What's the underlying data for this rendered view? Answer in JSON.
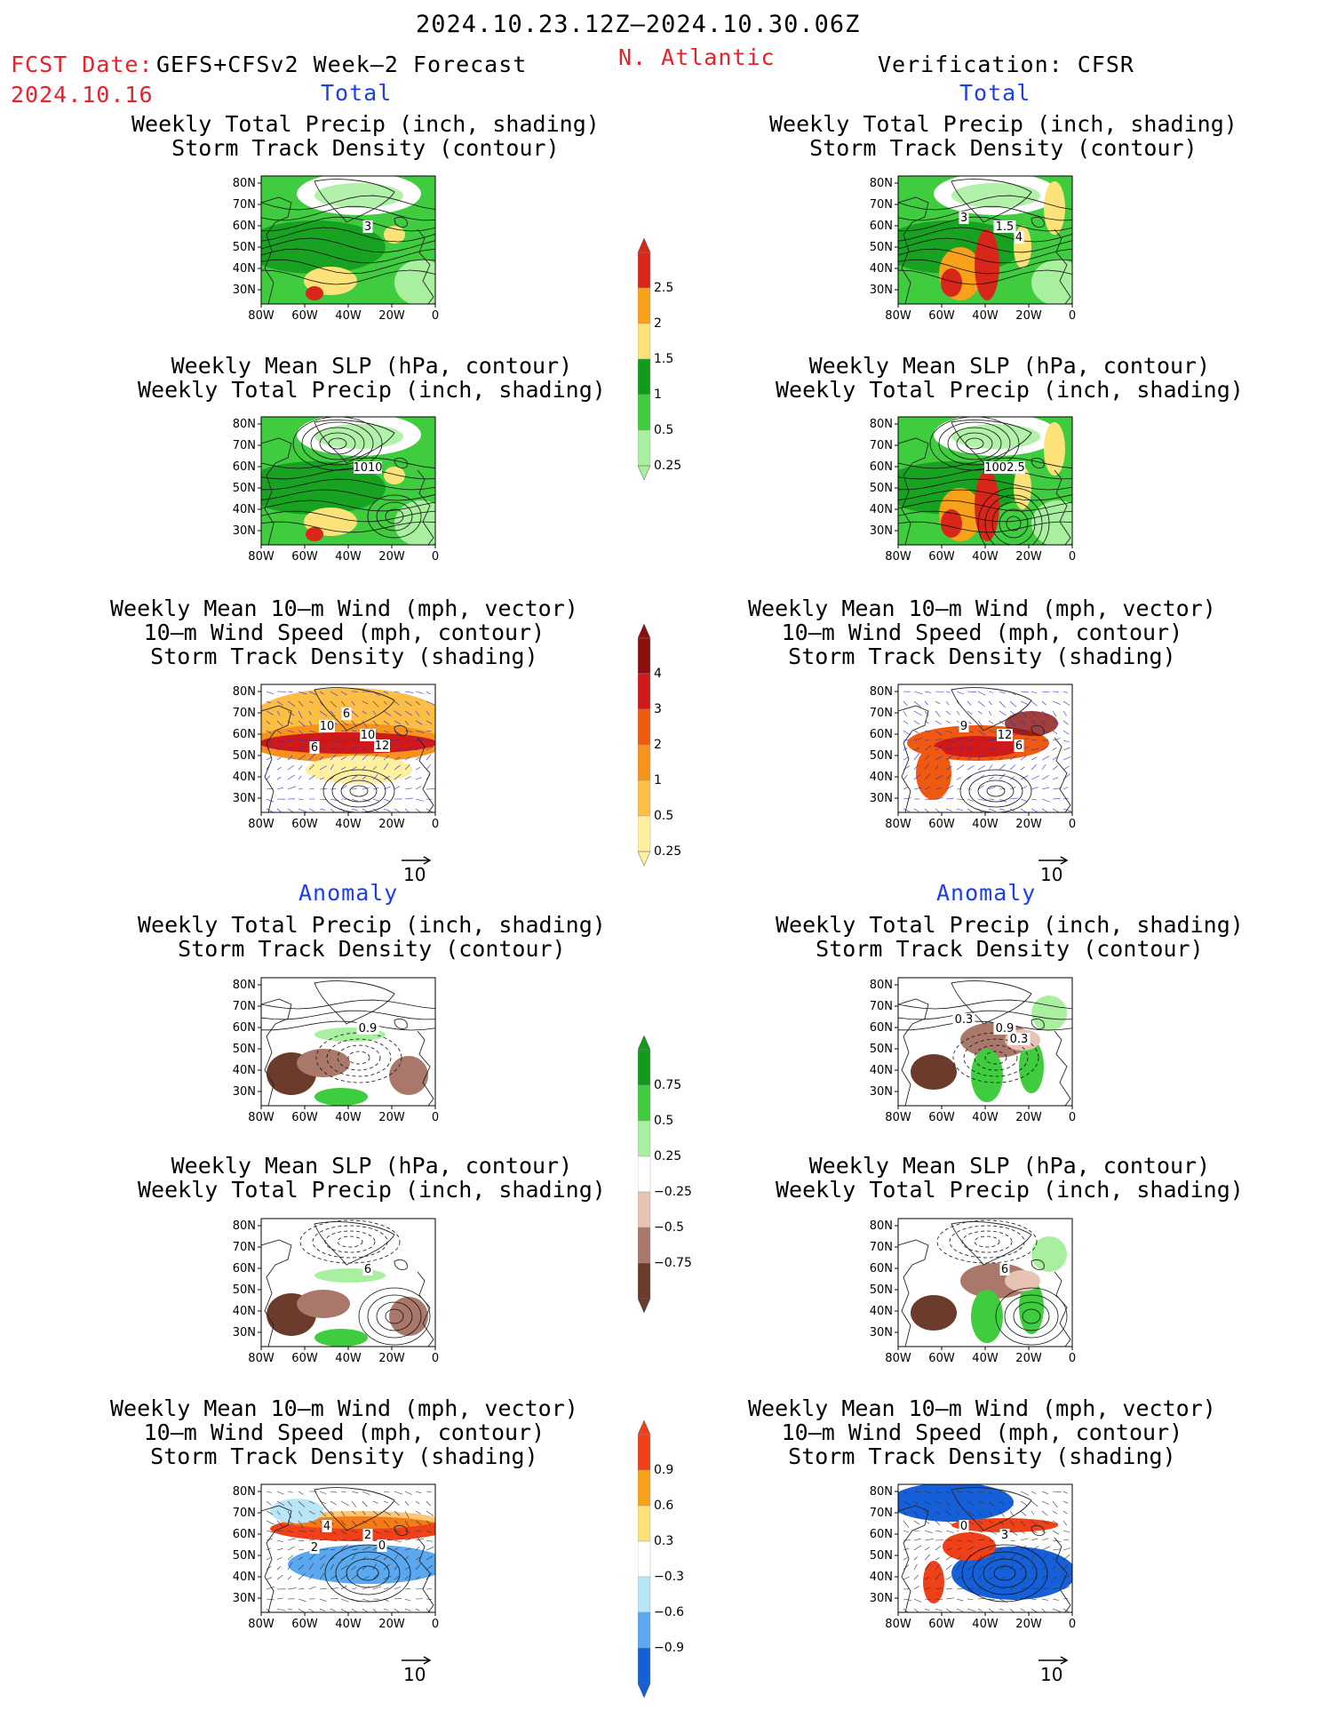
{
  "header": {
    "period": "2024.10.23.12Z—2024.10.30.06Z",
    "fcst_label": "FCST Date:",
    "fcst_model": "GEFS+CFSv2 Week—2 Forecast",
    "fcst_date": "2024.10.16",
    "region": "N. Atlantic",
    "verification": "Verification: CFSR"
  },
  "sections": {
    "total": "Total",
    "anomaly": "Anomaly"
  },
  "titles": {
    "precip_track": "Weekly Total Precip (inch, shading)\nStorm Track Density (contour)",
    "slp_precip": "Weekly Mean SLP (hPa, contour)\nWeekly Total Precip (inch, shading)",
    "wind": "Weekly Mean 10—m Wind (mph, vector)\n10—m Wind Speed (mph, contour)\nStorm Track Density (shading)"
  },
  "axes": {
    "lat_ticks": [
      "80N",
      "70N",
      "60N",
      "50N",
      "40N",
      "30N"
    ],
    "lon_ticks": [
      "80W",
      "60W",
      "40W",
      "20W",
      "0"
    ]
  },
  "vector_reference": "10",
  "colorbars": {
    "precip_total": {
      "labels": [
        "2.5",
        "2",
        "1.5",
        "1",
        "0.5",
        "0.25"
      ],
      "colors": [
        "#d8261a",
        "#f7a21a",
        "#fde27a",
        "#129a1c",
        "#3fcc3f",
        "#a8f0a0"
      ]
    },
    "track_total": {
      "labels": [
        "4",
        "3",
        "2",
        "1",
        "0.5",
        "0.25"
      ],
      "colors": [
        "#8a0f0f",
        "#d01a1a",
        "#f05a10",
        "#f7931a",
        "#fdbe45",
        "#fff0a0"
      ]
    },
    "precip_anom": {
      "labels": [
        "0.75",
        "0.5",
        "0.25",
        "−0.25",
        "−0.5",
        "−0.75"
      ],
      "colors": [
        "#129a1c",
        "#3fcc3f",
        "#a8f0a0",
        "#ffffff",
        "#e6c3b4",
        "#a9786a",
        "#6b3b2c"
      ]
    },
    "track_anom": {
      "labels": [
        "0.9",
        "0.6",
        "0.3",
        "−0.3",
        "−0.6",
        "−0.9"
      ],
      "colors": [
        "#f0401a",
        "#f7a21a",
        "#fde27a",
        "#ffffff",
        "#b9e6f7",
        "#5aa8f0",
        "#1560d8"
      ]
    }
  },
  "panel_labels": {
    "fc_total_track": [
      "3"
    ],
    "fc_total_slp": [
      "1010"
    ],
    "fc_total_wind": [
      "10",
      "10",
      "12",
      "6",
      "6"
    ],
    "ob_total_track": [
      "1.5",
      "3",
      "4"
    ],
    "ob_total_slp": [
      "1002.5"
    ],
    "ob_total_wind": [
      "12",
      "9",
      "6"
    ],
    "fc_anom_track": [
      "0.9"
    ],
    "fc_anom_slp": [
      "6"
    ],
    "fc_anom_wind": [
      "2",
      "4",
      "0",
      "2"
    ],
    "ob_anom_track": [
      "0.9",
      "0.3",
      "0.3"
    ],
    "ob_anom_slp": [
      "6"
    ],
    "ob_anom_wind": [
      "3",
      "0"
    ]
  }
}
